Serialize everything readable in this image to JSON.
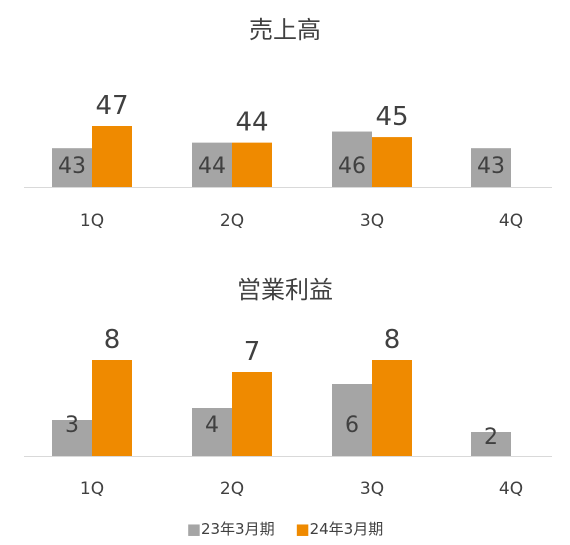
{
  "colors": {
    "series_23": "#a5a5a5",
    "series_24": "#ef8a00",
    "axis": "#d9d9d9",
    "text": "#404040"
  },
  "legend": [
    "■23年3月期",
    "■24年3月期"
  ],
  "chart_data": [
    {
      "type": "bar",
      "title": "売上高",
      "categories": [
        "1Q",
        "2Q",
        "3Q",
        "4Q"
      ],
      "series": [
        {
          "name": "23年3月期",
          "values": [
            43,
            44,
            46,
            43
          ]
        },
        {
          "name": "24年3月期",
          "values": [
            47,
            44,
            45,
            null
          ]
        }
      ],
      "ylim": [
        36,
        48
      ]
    },
    {
      "type": "bar",
      "title": "営業利益",
      "categories": [
        "1Q",
        "2Q",
        "3Q",
        "4Q"
      ],
      "series": [
        {
          "name": "23年3月期",
          "values": [
            3,
            4,
            6,
            2
          ]
        },
        {
          "name": "24年3月期",
          "values": [
            8,
            7,
            8,
            null
          ]
        }
      ],
      "ylim": [
        0,
        8.5
      ]
    }
  ]
}
